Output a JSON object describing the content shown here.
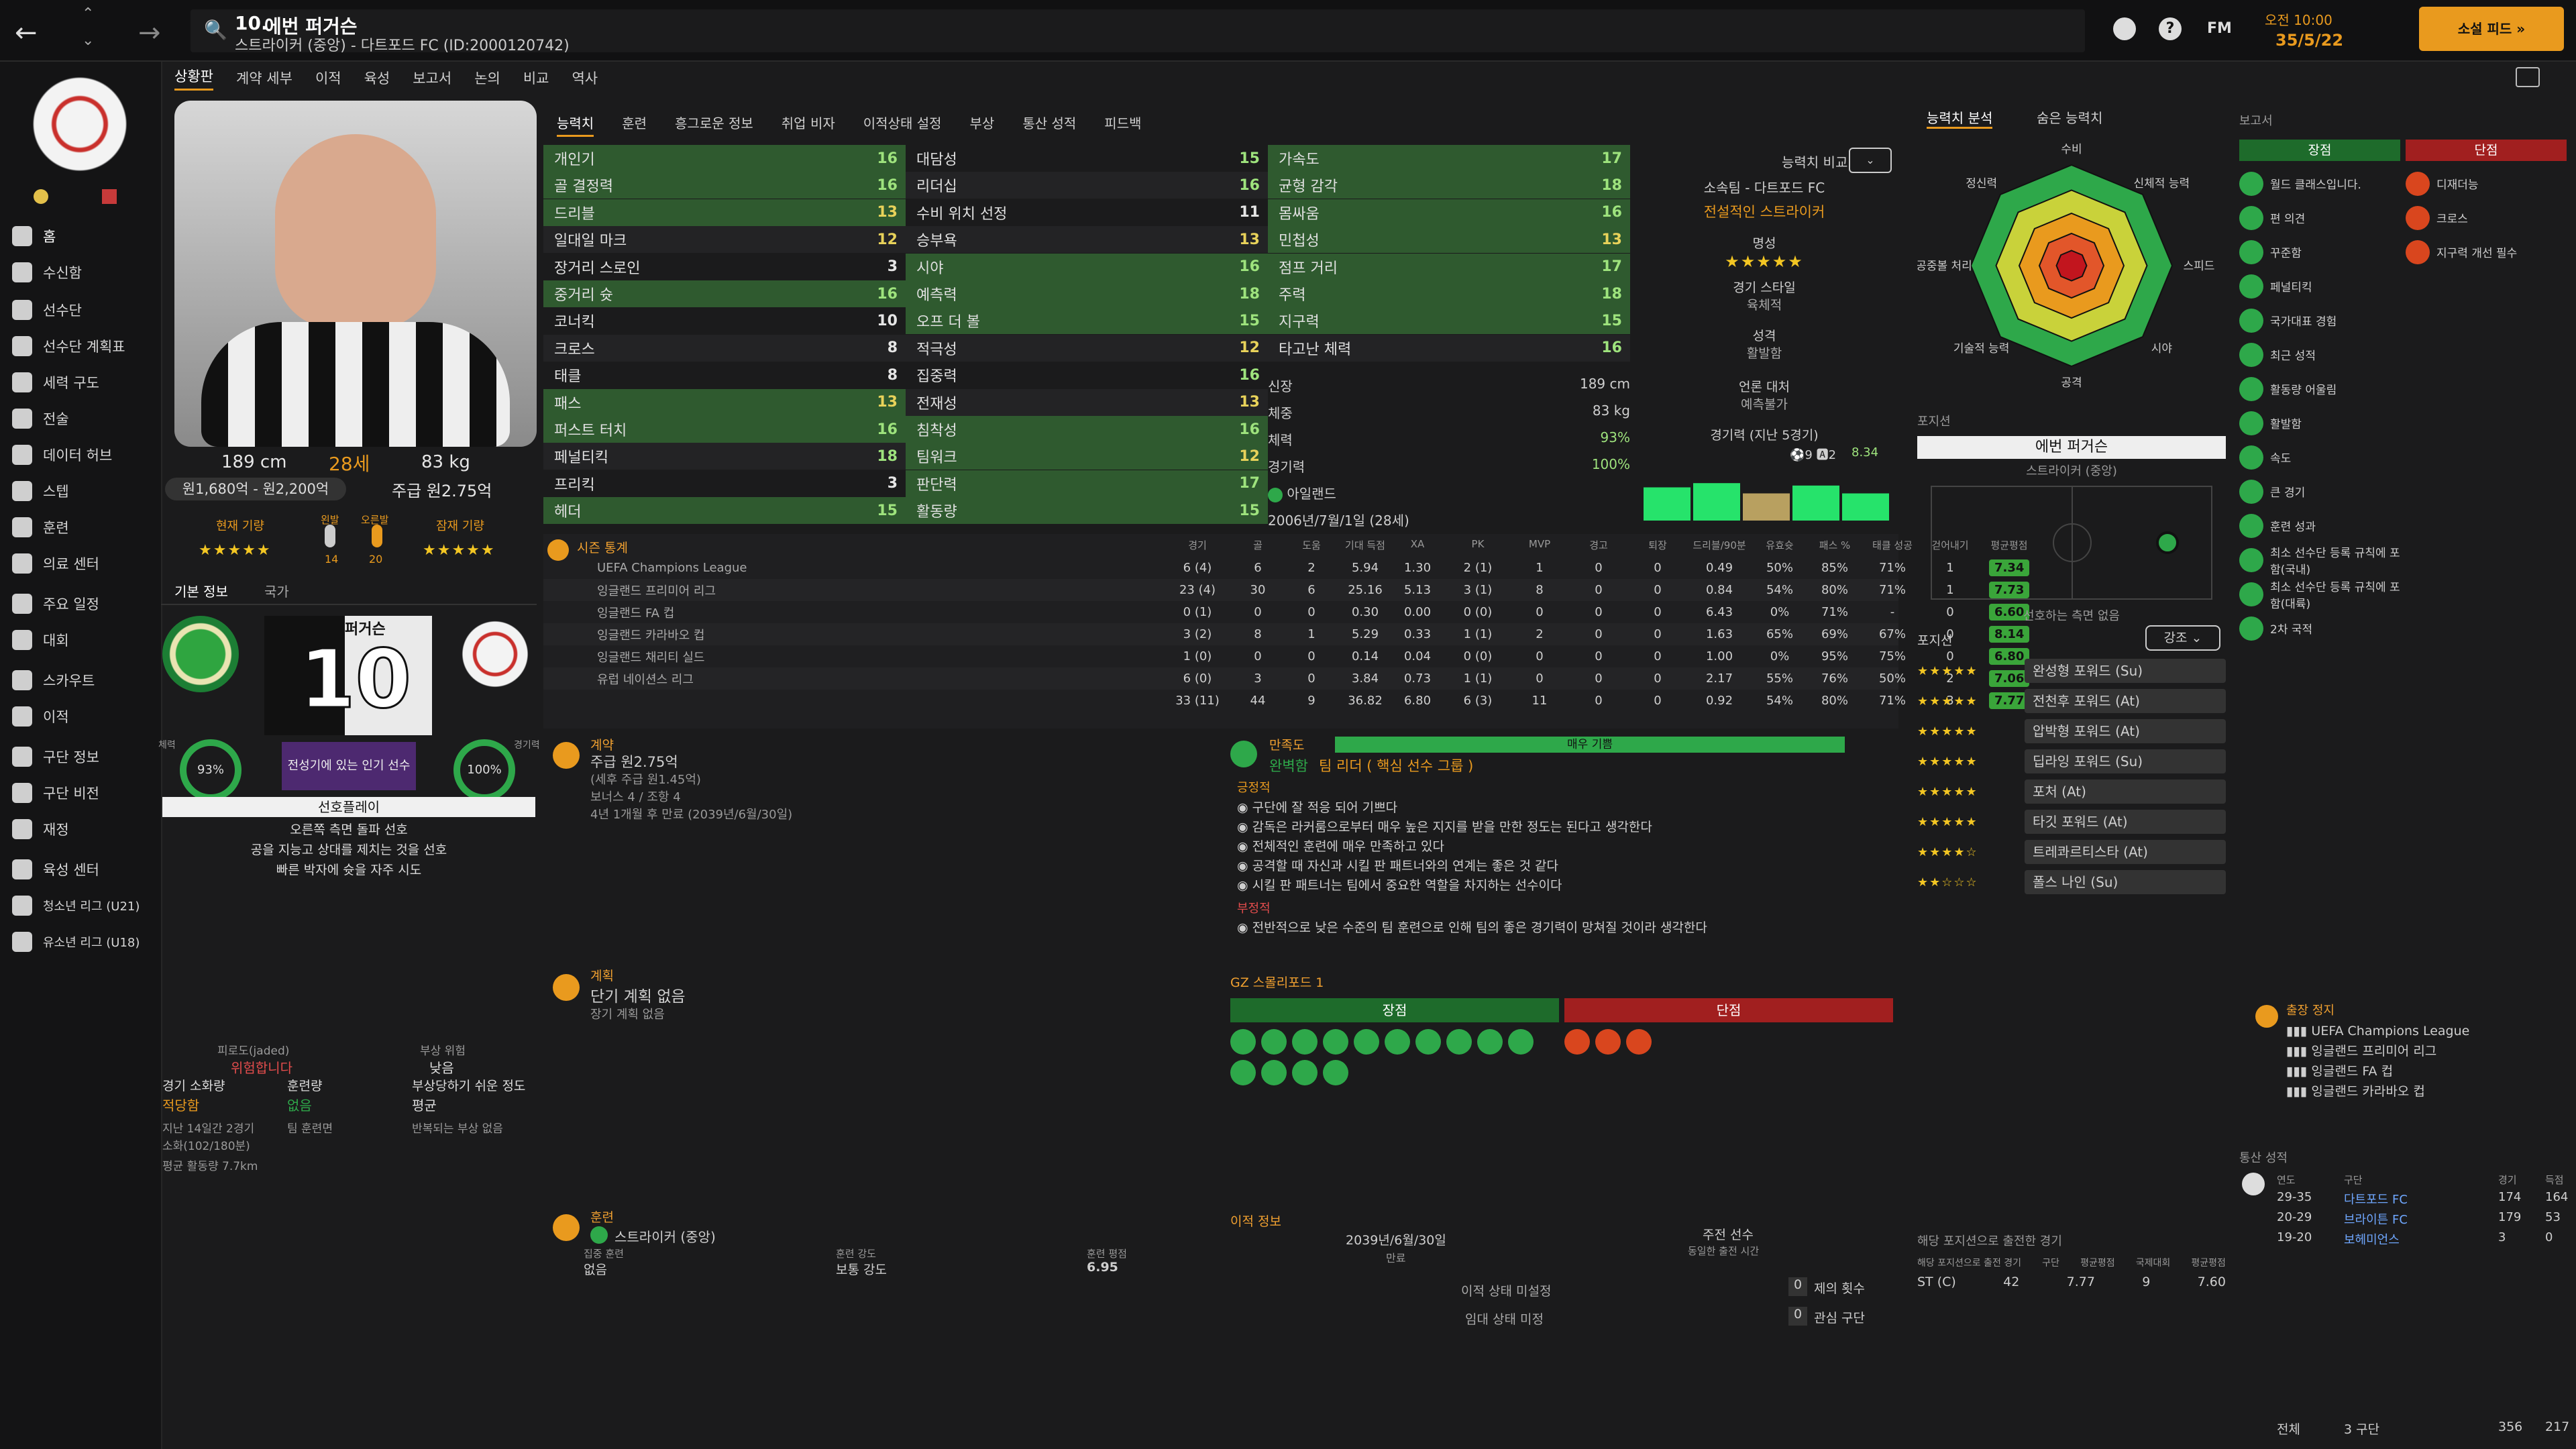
{
  "header": {
    "number": "10.",
    "name": "에번 퍼거슨",
    "subtitle": "스트라이커 (중앙) - 다트포드 FC (ID:2000120742)",
    "fm_label": "FM",
    "time": "오전 10:00",
    "date": "35/5/22",
    "continue_label": "소설 피드 »"
  },
  "menu": [
    "상황판",
    "계약 세부",
    "이적",
    "육성",
    "보고서",
    "논의",
    "비교",
    "역사"
  ],
  "sidebar": [
    "홈",
    "수신함",
    "선수단",
    "선수단 계획표",
    "세력 구도",
    "전술",
    "데이터 허브",
    "스텝",
    "훈련",
    "의료 센터",
    "주요 일정",
    "대회",
    "스카우트",
    "이적",
    "구단 정보",
    "구단 비전",
    "재정",
    "육성 센터",
    "청소년 리그 (U21)",
    "유소년 리그 (U18)"
  ],
  "profile": {
    "height": "189 cm",
    "age": "28세",
    "weight": "83 kg",
    "value": "원1,680억 - 원2,200억",
    "wage": "주급 원2.75억",
    "current_ability": "현재 기량",
    "potential_ability": "잠재 기량",
    "right_foot": "오른발",
    "left_foot": "왼발",
    "left_val": "14",
    "right_val": "20",
    "info_tab": "기본 정보",
    "nation_tab": "국가",
    "shirt_name": "퍼거슨",
    "shirt_num": "10",
    "popularity": "전성기에 있는 인기 선수",
    "condition_pct": "93%",
    "sharpness_pct": "100%",
    "fitness_label": "체력",
    "sharp_label": "경기력",
    "play_style_title": "선호플레이",
    "play_style": [
      "오른쪽 측면 돌파 선호",
      "공을 지능고 상대를 제치는 것을 선호",
      "빠른 박자에 슛을 자주 시도"
    ],
    "jaded_label": "피로도(jaded)",
    "jaded_val": "위험합니다",
    "injury_label": "부상 위험",
    "injury_val": "낮음",
    "workload_label": "경기 소화량",
    "workload_val": "적당함",
    "training_label": "훈련량",
    "training_val": "없음",
    "prone_label": "부상당하기 쉬운 정도",
    "prone_val": "평균",
    "recent_label": "지난 14일간 2경기",
    "recent_val": "소화(102/180분)",
    "recover": "팀 훈련면",
    "repeat": "반복되는 부상 없음",
    "avg_distance": "평균 활동량 7.7km"
  },
  "attr_tabs": [
    "능력치",
    "훈련",
    "흥그로운 정보",
    "취업 비자",
    "이적상태 설정",
    "부상",
    "통산 성적",
    "피드백"
  ],
  "attrs_col1": [
    {
      "n": "개인기",
      "v": "16",
      "c": "g",
      "h": true
    },
    {
      "n": "골 결정력",
      "v": "16",
      "c": "g",
      "h": true
    },
    {
      "n": "드리블",
      "v": "13",
      "c": "y",
      "h": true
    },
    {
      "n": "일대일 마크",
      "v": "12",
      "c": "y",
      "h": false
    },
    {
      "n": "장거리 스로인",
      "v": "3",
      "c": "w",
      "h": false
    },
    {
      "n": "중거리 슛",
      "v": "16",
      "c": "g",
      "h": true
    },
    {
      "n": "코너킥",
      "v": "10",
      "c": "w",
      "h": false
    },
    {
      "n": "크로스",
      "v": "8",
      "c": "w",
      "h": false
    },
    {
      "n": "태클",
      "v": "8",
      "c": "w",
      "h": false
    },
    {
      "n": "패스",
      "v": "13",
      "c": "y",
      "h": true
    },
    {
      "n": "퍼스트 터치",
      "v": "16",
      "c": "g",
      "h": true
    },
    {
      "n": "페널티킥",
      "v": "18",
      "c": "g",
      "h": false
    },
    {
      "n": "프리킥",
      "v": "3",
      "c": "w",
      "h": false
    },
    {
      "n": "헤더",
      "v": "15",
      "c": "g",
      "h": true
    }
  ],
  "attrs_col2": [
    {
      "n": "대담성",
      "v": "15",
      "c": "g",
      "h": false
    },
    {
      "n": "리더십",
      "v": "16",
      "c": "g",
      "h": false
    },
    {
      "n": "수비 위치 선정",
      "v": "11",
      "c": "w",
      "h": false
    },
    {
      "n": "승부욕",
      "v": "13",
      "c": "y",
      "h": false
    },
    {
      "n": "시야",
      "v": "16",
      "c": "g",
      "h": true
    },
    {
      "n": "예측력",
      "v": "18",
      "c": "g",
      "h": true
    },
    {
      "n": "오프 더 볼",
      "v": "15",
      "c": "g",
      "h": true
    },
    {
      "n": "적극성",
      "v": "12",
      "c": "y",
      "h": false
    },
    {
      "n": "집중력",
      "v": "16",
      "c": "g",
      "h": false
    },
    {
      "n": "전재성",
      "v": "13",
      "c": "y",
      "h": false
    },
    {
      "n": "침착성",
      "v": "16",
      "c": "g",
      "h": true
    },
    {
      "n": "팀워크",
      "v": "12",
      "c": "y",
      "h": true
    },
    {
      "n": "판단력",
      "v": "17",
      "c": "g",
      "h": true
    },
    {
      "n": "활동량",
      "v": "15",
      "c": "g",
      "h": true
    }
  ],
  "attrs_col3": [
    {
      "n": "가속도",
      "v": "17",
      "c": "g",
      "h": true
    },
    {
      "n": "균형 감각",
      "v": "18",
      "c": "g",
      "h": true
    },
    {
      "n": "몸싸움",
      "v": "16",
      "c": "g",
      "h": true
    },
    {
      "n": "민첩성",
      "v": "13",
      "c": "y",
      "h": true
    },
    {
      "n": "점프 거리",
      "v": "17",
      "c": "g",
      "h": true
    },
    {
      "n": "주력",
      "v": "18",
      "c": "g",
      "h": true
    },
    {
      "n": "지구력",
      "v": "15",
      "c": "g",
      "h": true
    },
    {
      "n": "타고난 체력",
      "v": "16",
      "c": "g",
      "h": false
    }
  ],
  "physical": {
    "height_l": "신장",
    "height_v": "189 cm",
    "weight_l": "체중",
    "weight_v": "83 kg",
    "cond_l": "체력",
    "cond_v": "93%",
    "sharp_l": "경기력",
    "sharp_v": "100%",
    "nation": "아일랜드",
    "dob": "2006년/7월/1일 (28세)"
  },
  "compare": {
    "label": "능력치 비교",
    "club": "소속팀 - 다트포드 FC",
    "role": "전설적인 스트라이커",
    "rep": "명성",
    "style_l": "경기 스타일",
    "style_v": "육체적",
    "pers_l": "성격",
    "pers_v": "활발함",
    "media_l": "언론 대처",
    "media_v": "예측불가",
    "form_l": "경기력 (지난 5경기)",
    "form_goals": "9",
    "form_assists": "2",
    "form_rating": "8.34",
    "form_bars": [
      0.55,
      0.62,
      0.45,
      0.58,
      0.45
    ]
  },
  "season": {
    "title": "시즌 통계",
    "cols": [
      "경기",
      "골",
      "도움",
      "기대 득점",
      "XA",
      "PK",
      "MVP",
      "경고",
      "퇴장",
      "드리블/90분",
      "유효슛",
      "패스 %",
      "태클 성공",
      "걷어내기",
      "평균평점"
    ],
    "rows": [
      [
        "UEFA Champions League",
        "6 (4)",
        "6",
        "2",
        "5.94",
        "1.30",
        "2 (1)",
        "1",
        "0",
        "0",
        "0.49",
        "50%",
        "85%",
        "71%",
        "1",
        "7.34"
      ],
      [
        "잉글랜드 프리미어 리그",
        "23 (4)",
        "30",
        "6",
        "25.16",
        "5.13",
        "3 (1)",
        "8",
        "0",
        "0",
        "0.84",
        "54%",
        "80%",
        "71%",
        "1",
        "7.73"
      ],
      [
        "잉글랜드 FA 컵",
        "0 (1)",
        "0",
        "0",
        "0.30",
        "0.00",
        "0 (0)",
        "0",
        "0",
        "0",
        "6.43",
        "0%",
        "71%",
        "-",
        "0",
        "6.60"
      ],
      [
        "잉글랜드 카라바오 컵",
        "3 (2)",
        "8",
        "1",
        "5.29",
        "0.33",
        "1 (1)",
        "2",
        "0",
        "0",
        "1.63",
        "65%",
        "69%",
        "67%",
        "0",
        "8.14"
      ],
      [
        "잉글랜드 채리티 실드",
        "1 (0)",
        "0",
        "0",
        "0.14",
        "0.04",
        "0 (0)",
        "0",
        "0",
        "0",
        "1.00",
        "0%",
        "95%",
        "75%",
        "0",
        "6.80"
      ],
      [
        "유럽 네이션스 리그",
        "6 (0)",
        "3",
        "0",
        "3.84",
        "0.73",
        "1 (1)",
        "0",
        "0",
        "0",
        "2.17",
        "55%",
        "76%",
        "50%",
        "2",
        "7.06"
      ],
      [
        "",
        "33 (11)",
        "44",
        "9",
        "36.82",
        "6.80",
        "6 (3)",
        "11",
        "0",
        "0",
        "0.92",
        "54%",
        "80%",
        "71%",
        "3",
        "7.77"
      ]
    ]
  },
  "contract": {
    "title": "계약",
    "wage": "주급 원2.75억",
    "weekly": "(세후 주급 원1.45억)",
    "bonus": "보너스 4 / 조항 4",
    "end": "4년 1개월 후 만료 (2039년/6월/30일)"
  },
  "plan": {
    "title": "계획",
    "short": "단기 계획 없음",
    "long": "장기 계획 없음"
  },
  "happiness": {
    "title": "만족도",
    "status": "매우 기쁨",
    "level": "완벽함",
    "group": "팀 리더 ( 핵심 선수 그룹 )",
    "pos_title": "긍정적",
    "positives": [
      "구단에 잘 적응 되어 기쁘다",
      "감독은 라커룸으로부터 매우 높은 지지를 받을 만한 정도는 된다고 생각한다",
      "전체적인 훈련에 매우 만족하고 있다",
      "공격할 때 자신과 시킬 판 패트너와의 연계는 좋은 것 같다",
      "시킬 판 패트너는 팀에서 중요한 역할을 차지하는 선수이다"
    ],
    "neg_title": "부정적",
    "negatives": [
      "전반적으로 낮은 수준의 팀 훈련으로 인해 팀의 좋은 경기력이 망쳐질 것이라 생각한다"
    ]
  },
  "scout": {
    "title": "GZ 스몰리포드 1",
    "pros": "장점",
    "cons": "단점"
  },
  "training": {
    "title": "훈련",
    "role": "스트라이커 (중앙)",
    "focus_l": "집중 훈련",
    "focus_v": "없음",
    "int_l": "훈련 강도",
    "int_v": "보통 강도",
    "rating_l": "훈련 평점",
    "rating_v": "6.95"
  },
  "transfer": {
    "title": "이적 정보",
    "date": "2039년/6월/30일",
    "end_l": "만료",
    "main_l": "주전 선수",
    "main_s": "동일한 출전 시간",
    "status1": "이적 상태 미설정",
    "status2": "임대 상태 미정",
    "offers_n": "0",
    "offers_l": "제의 횟수",
    "int_n": "0",
    "int_l": "관심 구단"
  },
  "analysis": {
    "tab1": "능력치 분석",
    "tab2": "숨은 능력치",
    "labels": [
      "수비",
      "신체적 능력",
      "스피드",
      "시야",
      "공격",
      "기술적 능력",
      "공중볼 처리",
      "정신력"
    ]
  },
  "position": {
    "title": "포지션",
    "name": "에번 퍼거슨",
    "role": "스트라이커 (중앙)",
    "pref": "선호하는 측면 없음",
    "roles_title": "포지션",
    "emph": "강조",
    "roles": [
      {
        "s": "★★★★★",
        "n": "완성형 포워드 (Su)"
      },
      {
        "s": "★★★★★",
        "n": "전천후 포워드 (At)"
      },
      {
        "s": "★★★★★",
        "n": "압박형 포워드 (At)"
      },
      {
        "s": "★★★★★",
        "n": "딥라잉 포워드 (Su)"
      },
      {
        "s": "★★★★★",
        "n": "포처 (At)"
      },
      {
        "s": "★★★★★",
        "n": "타깃 포워드 (At)"
      },
      {
        "s": "★★★★☆",
        "n": "트레콰르티스타 (At)"
      },
      {
        "s": "★★☆☆☆",
        "n": "폴스 나인 (Su)"
      }
    ],
    "apps_title": "해당 포지션으로 출전한 경기",
    "apps_cols": [
      "해당 포지션으로 출전 경기",
      "구단",
      "평균평점",
      "국제대회",
      "평균평점"
    ],
    "apps_row": [
      "ST (C)",
      "42",
      "7.77",
      "9",
      "7.60"
    ]
  },
  "report": {
    "title": "보고서",
    "pros": "장점",
    "cons": "단점",
    "pro_list": [
      "월드 클래스입니다.",
      "편 의견",
      "꾸준함",
      "페널티킥",
      "국가대표 경험",
      "최근 성적",
      "활동량 어울림",
      "활발함",
      "속도",
      "큰 경기",
      "훈련 성과",
      "최소 선수단 등록 규칙에 포함(국내)",
      "최소 선수단 등록 규칙에 포함(대륙)",
      "2차 국적"
    ],
    "con_list": [
      "디재더능",
      "크로스",
      "지구력 개선 필수"
    ]
  },
  "suspension": {
    "title": "출장 정지",
    "list": [
      "UEFA Champions League",
      "잉글랜드 프리미어 리그",
      "잉글랜드 FA 컵",
      "잉글랜드 카라바오 컵"
    ]
  },
  "career": {
    "title": "통산 성적",
    "cols": [
      "연도",
      "구단",
      "경기",
      "득점"
    ],
    "rows": [
      [
        "29-35",
        "다트포드 FC",
        "174",
        "164"
      ],
      [
        "20-29",
        "브라이튼 FC",
        "179",
        "53"
      ],
      [
        "19-20",
        "보헤미언스",
        "3",
        "0"
      ]
    ],
    "total_l": "전체",
    "total_club": "3 구단",
    "total_apps": "356",
    "total_goals": "217"
  },
  "colors": {
    "accent": "#e99a1e",
    "green": "#2ea84a",
    "red": "#a11f1f"
  }
}
